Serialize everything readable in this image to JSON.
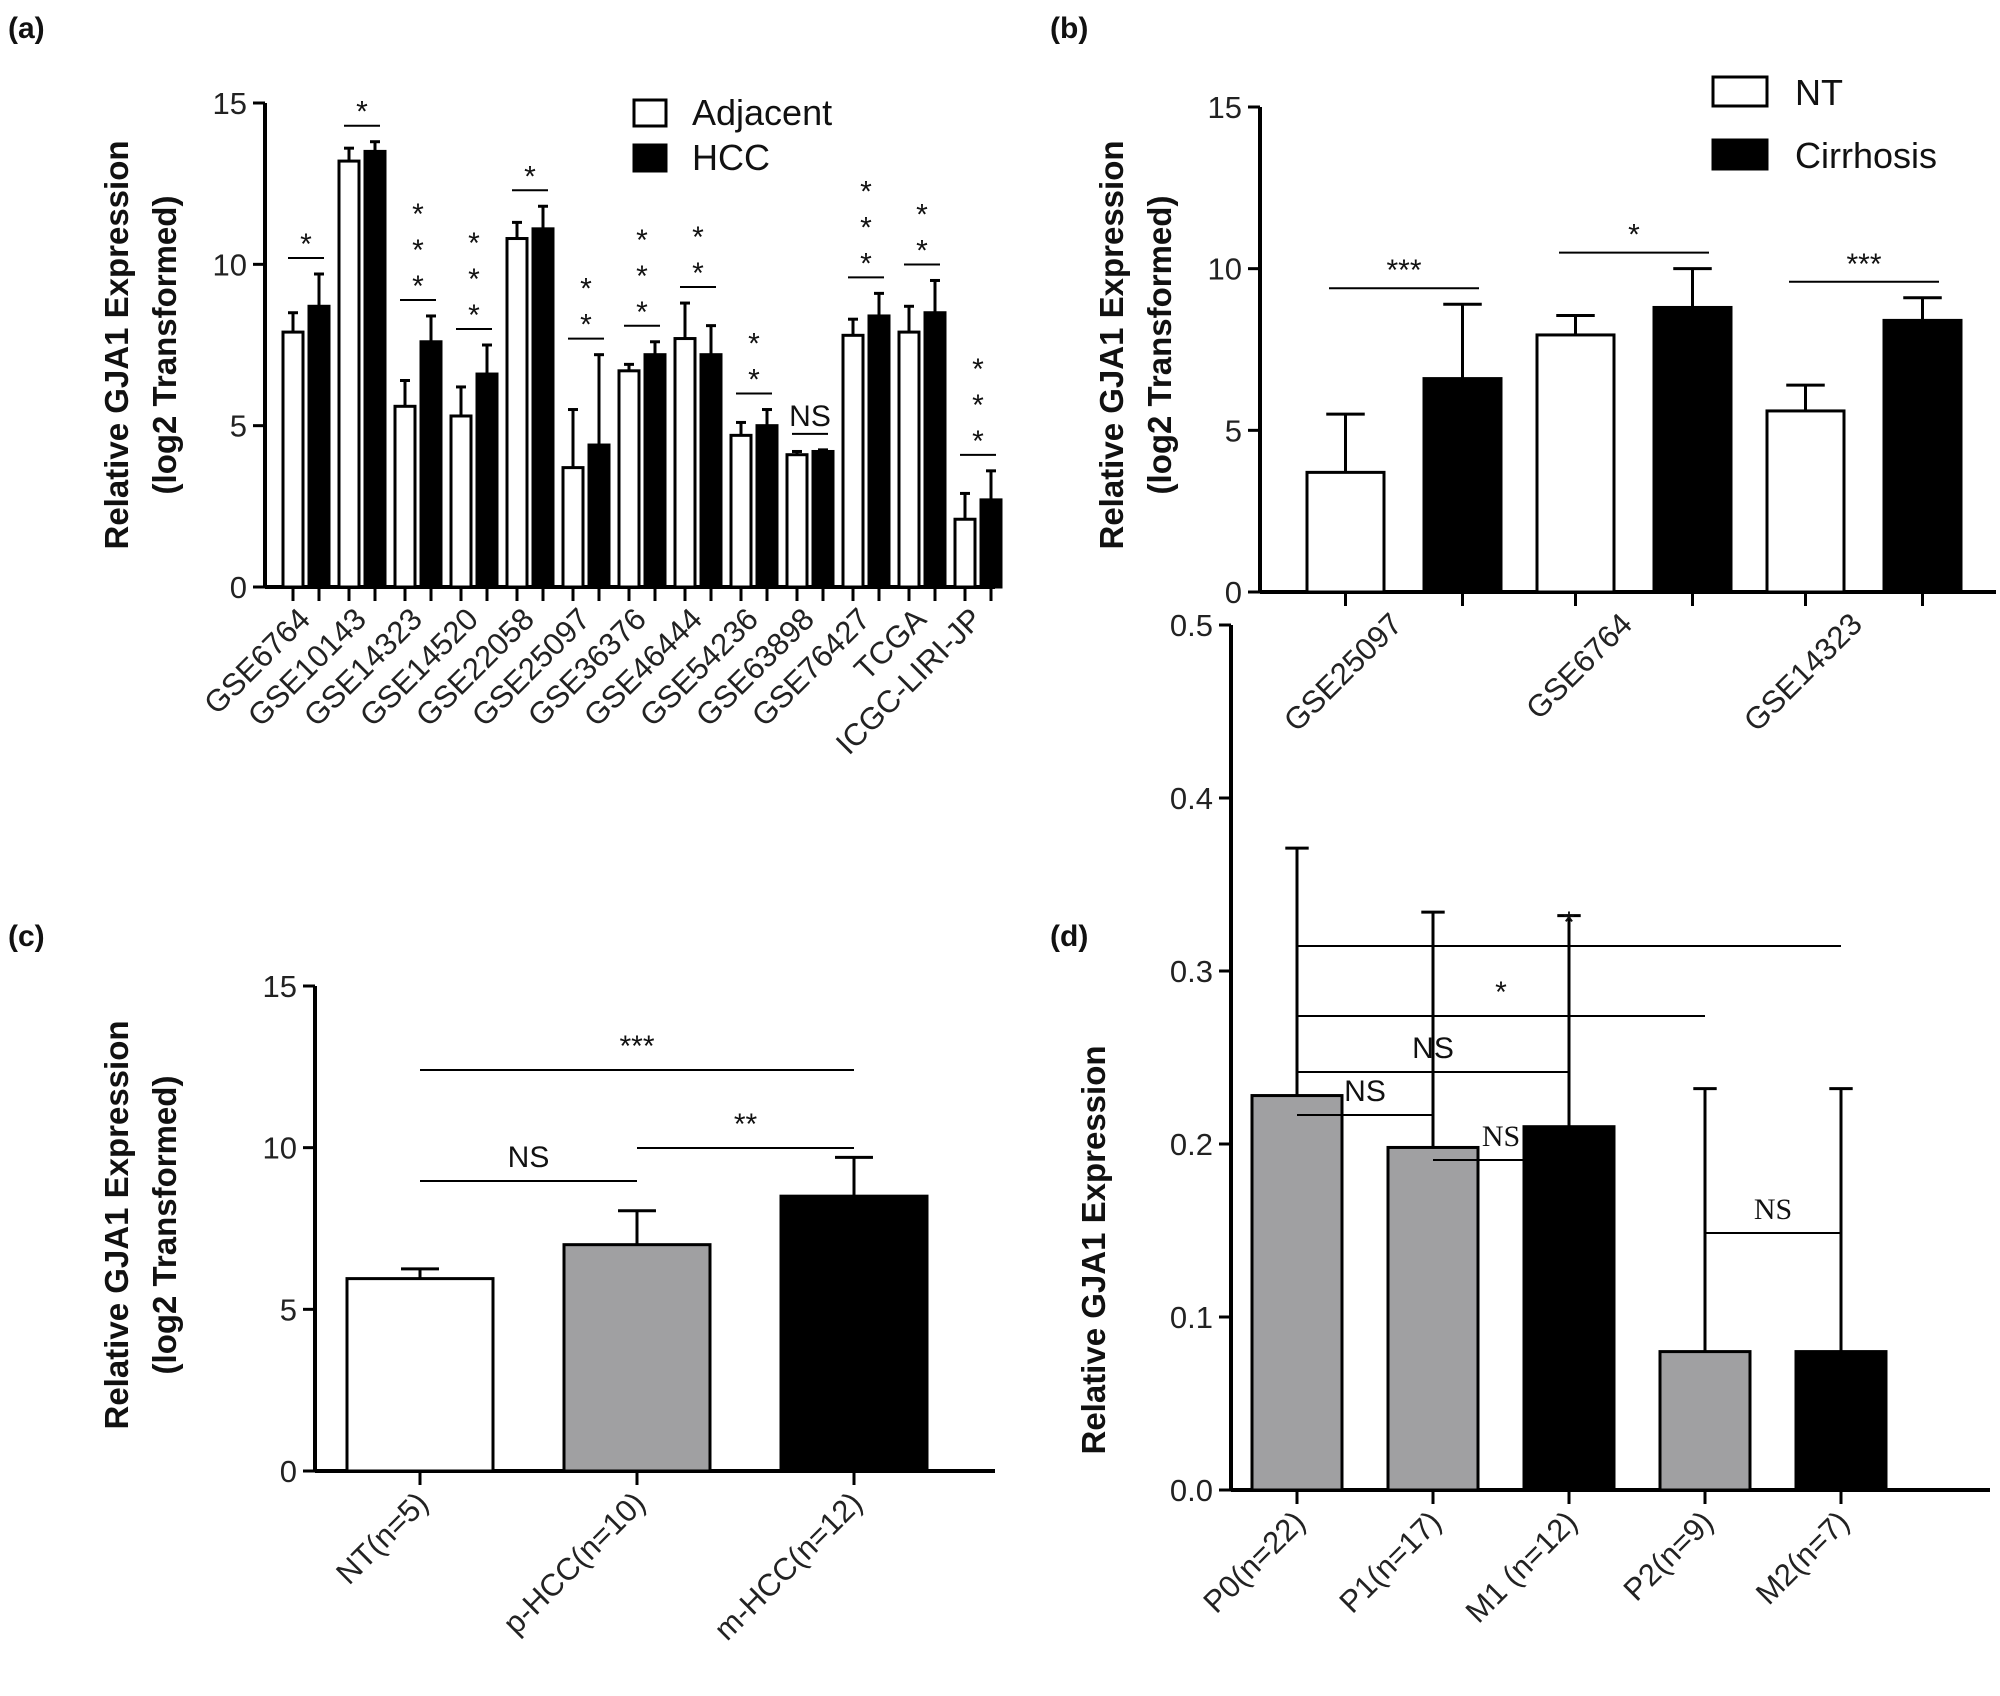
{
  "chart_data": [
    {
      "panel": "(a)",
      "type": "bar",
      "ylabel": [
        "Relative GJA1 Expression",
        "(log2 Transformed)"
      ],
      "ylim": [
        0,
        15
      ],
      "yticks": [
        0,
        5,
        10,
        15
      ],
      "grid": false,
      "legend": "top-right",
      "categories": [
        "GSE6764",
        "GSE10143",
        "GSE14323",
        "GSE14520",
        "GSE22058",
        "GSE25097",
        "GSE36376",
        "GSE46444",
        "GSE54236",
        "GSE63898",
        "GSE76427",
        "TCGA",
        "ICGC-LIRI-JP"
      ],
      "series": [
        {
          "name": "Adjacent",
          "color": "#ffffff",
          "values": [
            7.9,
            13.2,
            5.6,
            5.3,
            10.8,
            3.7,
            6.7,
            7.7,
            4.7,
            4.1,
            7.8,
            7.9,
            2.1
          ],
          "errors": [
            0.6,
            0.4,
            0.8,
            0.9,
            0.5,
            1.8,
            0.2,
            1.1,
            0.4,
            0.1,
            0.5,
            0.8,
            0.8
          ]
        },
        {
          "name": "HCC",
          "color": "#000000",
          "values": [
            8.7,
            13.5,
            7.6,
            6.6,
            11.1,
            4.4,
            7.2,
            7.2,
            5.0,
            4.2,
            8.4,
            8.5,
            2.7
          ],
          "errors": [
            1.0,
            0.3,
            0.8,
            0.9,
            0.7,
            2.8,
            0.4,
            0.9,
            0.5,
            0.05,
            0.7,
            1.0,
            0.9
          ]
        }
      ],
      "significance": [
        "*",
        "*",
        "***",
        "***",
        "*",
        "**",
        "***",
        "**",
        "**",
        "NS",
        "***",
        "**",
        "***"
      ]
    },
    {
      "panel": "(b)",
      "type": "bar",
      "ylabel": [
        "Relative GJA1 Expression",
        "(log2 Transformed)"
      ],
      "ylim": [
        0,
        15
      ],
      "yticks": [
        0,
        5,
        10,
        15
      ],
      "grid": false,
      "legend": "top-right",
      "categories": [
        "GSE25097",
        "GSE6764",
        "GSE14323"
      ],
      "series": [
        {
          "name": "NT",
          "color": "#ffffff",
          "values": [
            3.7,
            7.95,
            5.6
          ],
          "errors": [
            1.8,
            0.6,
            0.8
          ]
        },
        {
          "name": "Cirrhosis",
          "color": "#000000",
          "values": [
            6.6,
            8.8,
            8.4
          ],
          "errors": [
            2.3,
            1.2,
            0.7
          ]
        }
      ],
      "significance": [
        "***",
        "*",
        "***"
      ]
    },
    {
      "panel": "(c)",
      "type": "bar",
      "ylabel": [
        "Relative GJA1 Expression",
        "(log2 Transformed)"
      ],
      "ylim": [
        0,
        15
      ],
      "yticks": [
        0,
        5,
        10,
        15
      ],
      "grid": false,
      "categories": [
        "NT(n=5)",
        "p-HCC(n=10)",
        "m-HCC(n=12)"
      ],
      "values": [
        5.95,
        7.0,
        8.5
      ],
      "errors": [
        0.3,
        1.05,
        1.2
      ],
      "colors": [
        "#ffffff",
        "#a0a0a2",
        "#000000"
      ],
      "comparisons": [
        {
          "from": 0,
          "to": 1,
          "label": "NS"
        },
        {
          "from": 1,
          "to": 2,
          "label": "**"
        },
        {
          "from": 0,
          "to": 2,
          "label": "***"
        }
      ]
    },
    {
      "panel": "(d)",
      "type": "bar",
      "ylabel": [
        "Relative GJA1 Expression"
      ],
      "ylim": [
        0,
        0.5
      ],
      "yticks": [
        "0.0",
        "0.1",
        "0.2",
        "0.3",
        "0.4",
        "0.5"
      ],
      "grid": false,
      "categories": [
        "P0(n=22)",
        "P1(n=17)",
        "M1 (n=12)",
        "P2(n=9)",
        "M2(n=7)"
      ],
      "values": [
        0.228,
        0.198,
        0.21,
        0.08,
        0.08
      ],
      "errors": [
        0.143,
        0.136,
        0.122,
        0.152,
        0.152
      ],
      "colors": [
        "#a0a0a2",
        "#a0a0a2",
        "#000000",
        "#a0a0a2",
        "#000000"
      ],
      "comparisons": [
        {
          "from": 0,
          "to": 1,
          "label": "NS"
        },
        {
          "from": 1,
          "to": 2,
          "label": "NS"
        },
        {
          "from": 3,
          "to": 4,
          "label": "NS"
        },
        {
          "from": 0,
          "to": 2,
          "label": "NS"
        },
        {
          "from": 0,
          "to": 3,
          "label": "*"
        },
        {
          "from": 0,
          "to": 4,
          "label": "*"
        }
      ]
    }
  ]
}
